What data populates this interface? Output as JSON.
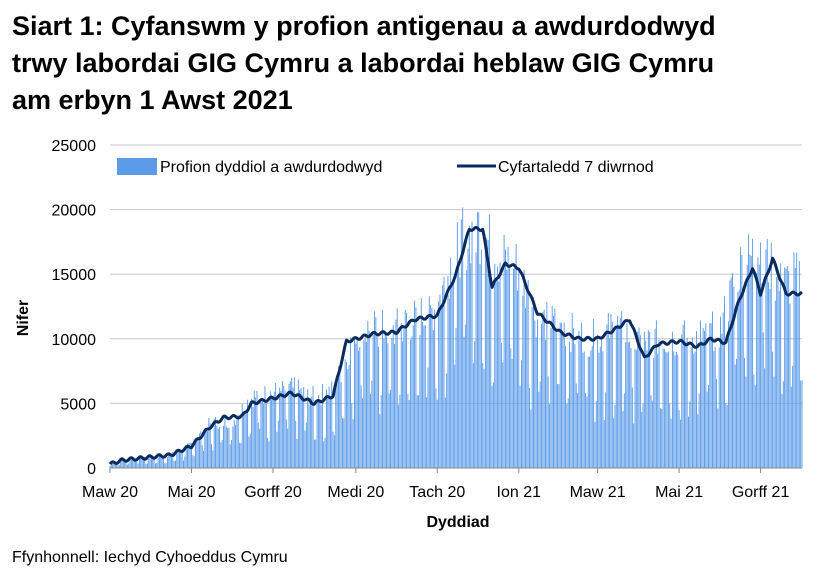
{
  "title_lines": [
    "Siart 1: Cyfanswm y profion antigenau a awdurdodwyd",
    "trwy labordai GIG Cymru a labordai heblaw GIG Cymru",
    "am erbyn 1 Awst 2021"
  ],
  "source": "Ffynhonnell: Iechyd Cyhoeddus Cymru",
  "colors": {
    "bars": "#5b9be8",
    "line": "#0b2a5e",
    "grid": "#c8c8c8",
    "axis": "#888888"
  },
  "chart_data": {
    "type": "bar",
    "x_axis": {
      "label": "Dyddiad",
      "start": "2020-03-01",
      "end": "2021-08-01",
      "tick_labels": [
        "Maw 20",
        "Mai 20",
        "Gorff 20",
        "Medi 20",
        "Tach 20",
        "Ion 21",
        "Maw 21",
        "Mai 21",
        "Gorff 21"
      ],
      "tick_dates": [
        "2020-03-01",
        "2020-05-01",
        "2020-07-01",
        "2020-09-01",
        "2020-11-01",
        "2021-01-01",
        "2021-03-01",
        "2021-05-01",
        "2021-07-01"
      ]
    },
    "y_axis": {
      "label": "Nifer",
      "min": 0,
      "max": 25000,
      "ticks": [
        0,
        5000,
        10000,
        15000,
        20000,
        25000
      ]
    },
    "grid": true,
    "legend_position": "top",
    "series": [
      {
        "name": "Profion dyddiol a awdurdodwyd",
        "type": "bar",
        "anchors": [
          [
            "2020-03-01",
            300
          ],
          [
            "2020-03-15",
            700
          ],
          [
            "2020-04-01",
            800
          ],
          [
            "2020-04-15",
            1000
          ],
          [
            "2020-05-01",
            1800
          ],
          [
            "2020-05-15",
            3500
          ],
          [
            "2020-06-01",
            3600
          ],
          [
            "2020-06-15",
            5500
          ],
          [
            "2020-07-01",
            5800
          ],
          [
            "2020-07-15",
            6200
          ],
          [
            "2020-08-01",
            5500
          ],
          [
            "2020-08-15",
            6000
          ],
          [
            "2020-09-01",
            10500
          ],
          [
            "2020-09-15",
            10700
          ],
          [
            "2020-10-01",
            10800
          ],
          [
            "2020-10-15",
            11500
          ],
          [
            "2020-11-01",
            12500
          ],
          [
            "2020-11-15",
            17000
          ],
          [
            "2020-12-01",
            18800
          ],
          [
            "2020-12-15",
            16500
          ],
          [
            "2021-01-01",
            15500
          ],
          [
            "2021-01-15",
            11500
          ],
          [
            "2021-02-01",
            11000
          ],
          [
            "2021-02-15",
            10200
          ],
          [
            "2021-03-01",
            10000
          ],
          [
            "2021-03-15",
            11000
          ],
          [
            "2021-04-01",
            9500
          ],
          [
            "2021-04-15",
            10000
          ],
          [
            "2021-05-01",
            10000
          ],
          [
            "2021-05-15",
            10200
          ],
          [
            "2021-06-01",
            10800
          ],
          [
            "2021-06-15",
            15500
          ],
          [
            "2021-07-01",
            17000
          ],
          [
            "2021-07-15",
            14000
          ],
          [
            "2021-08-01",
            15000
          ]
        ]
      },
      {
        "name": "Cyfartaledd 7 diwrnod",
        "type": "line",
        "anchors": [
          [
            "2020-03-01",
            300
          ],
          [
            "2020-03-10",
            600
          ],
          [
            "2020-04-01",
            850
          ],
          [
            "2020-04-15",
            1000
          ],
          [
            "2020-05-01",
            1700
          ],
          [
            "2020-05-15",
            3200
          ],
          [
            "2020-05-25",
            3900
          ],
          [
            "2020-06-08",
            4000
          ],
          [
            "2020-06-15",
            5000
          ],
          [
            "2020-07-01",
            5400
          ],
          [
            "2020-07-15",
            5800
          ],
          [
            "2020-08-01",
            5000
          ],
          [
            "2020-08-15",
            5600
          ],
          [
            "2020-08-25",
            9800
          ],
          [
            "2020-09-15",
            10400
          ],
          [
            "2020-10-01",
            10500
          ],
          [
            "2020-10-15",
            11500
          ],
          [
            "2020-11-01",
            11800
          ],
          [
            "2020-11-15",
            15000
          ],
          [
            "2020-11-25",
            18500
          ],
          [
            "2020-12-05",
            18500
          ],
          [
            "2020-12-12",
            14000
          ],
          [
            "2020-12-22",
            15800
          ],
          [
            "2021-01-01",
            15500
          ],
          [
            "2021-01-15",
            12000
          ],
          [
            "2021-02-01",
            10500
          ],
          [
            "2021-02-15",
            10000
          ],
          [
            "2021-03-01",
            10000
          ],
          [
            "2021-03-15",
            10800
          ],
          [
            "2021-03-25",
            11500
          ],
          [
            "2021-04-05",
            8500
          ],
          [
            "2021-04-15",
            9600
          ],
          [
            "2021-05-01",
            9800
          ],
          [
            "2021-05-15",
            9400
          ],
          [
            "2021-05-25",
            10000
          ],
          [
            "2021-06-05",
            9700
          ],
          [
            "2021-06-15",
            13000
          ],
          [
            "2021-06-25",
            15500
          ],
          [
            "2021-07-01",
            13500
          ],
          [
            "2021-07-10",
            16200
          ],
          [
            "2021-07-20",
            13500
          ],
          [
            "2021-08-01",
            13500
          ]
        ]
      }
    ]
  }
}
